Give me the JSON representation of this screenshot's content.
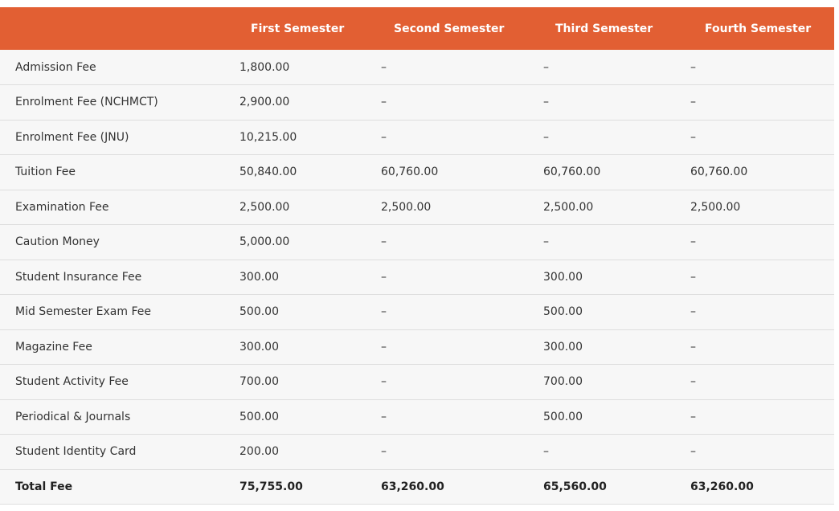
{
  "columns": [
    "",
    "First Semester",
    "Second Semester",
    "Third Semester",
    "Fourth Semester"
  ],
  "rows": [
    {
      "label": "Admission Fee",
      "values": [
        "1,800.00",
        "–",
        "–",
        "–"
      ]
    },
    {
      "label": "Enrolment Fee (NCHMCT)",
      "values": [
        "2,900.00",
        "–",
        "–",
        "–"
      ]
    },
    {
      "label": "Enrolment Fee (JNU)",
      "values": [
        "10,215.00",
        "–",
        "–",
        "–"
      ]
    },
    {
      "label": "Tuition Fee",
      "values": [
        "50,840.00",
        "60,760.00",
        "60,760.00",
        "60,760.00"
      ]
    },
    {
      "label": "Examination Fee",
      "values": [
        "2,500.00",
        "2,500.00",
        "2,500.00",
        "2,500.00"
      ]
    },
    {
      "label": "Caution Money",
      "values": [
        "5,000.00",
        "–",
        "–",
        "–"
      ]
    },
    {
      "label": "Student Insurance Fee",
      "values": [
        "300.00",
        "–",
        "300.00",
        "–"
      ]
    },
    {
      "label": "Mid Semester Exam Fee",
      "values": [
        "500.00",
        "–",
        "500.00",
        "–"
      ]
    },
    {
      "label": "Magazine Fee",
      "values": [
        "300.00",
        "–",
        "300.00",
        "–"
      ]
    },
    {
      "label": "Student Activity Fee",
      "values": [
        "700.00",
        "–",
        "700.00",
        "–"
      ]
    },
    {
      "label": "Periodical & Journals",
      "values": [
        "500.00",
        "–",
        "500.00",
        "–"
      ]
    },
    {
      "label": "Student Identity Card",
      "values": [
        "200.00",
        "–",
        "–",
        "–"
      ]
    }
  ],
  "total": {
    "label": "Total Fee",
    "values": [
      "75,755.00",
      "63,260.00",
      "65,560.00",
      "63,260.00"
    ]
  },
  "colors": {
    "header_background": "#e25f33",
    "header_text": "#ffffff",
    "row_background": "#f7f7f7",
    "row_border": "#dedede"
  }
}
